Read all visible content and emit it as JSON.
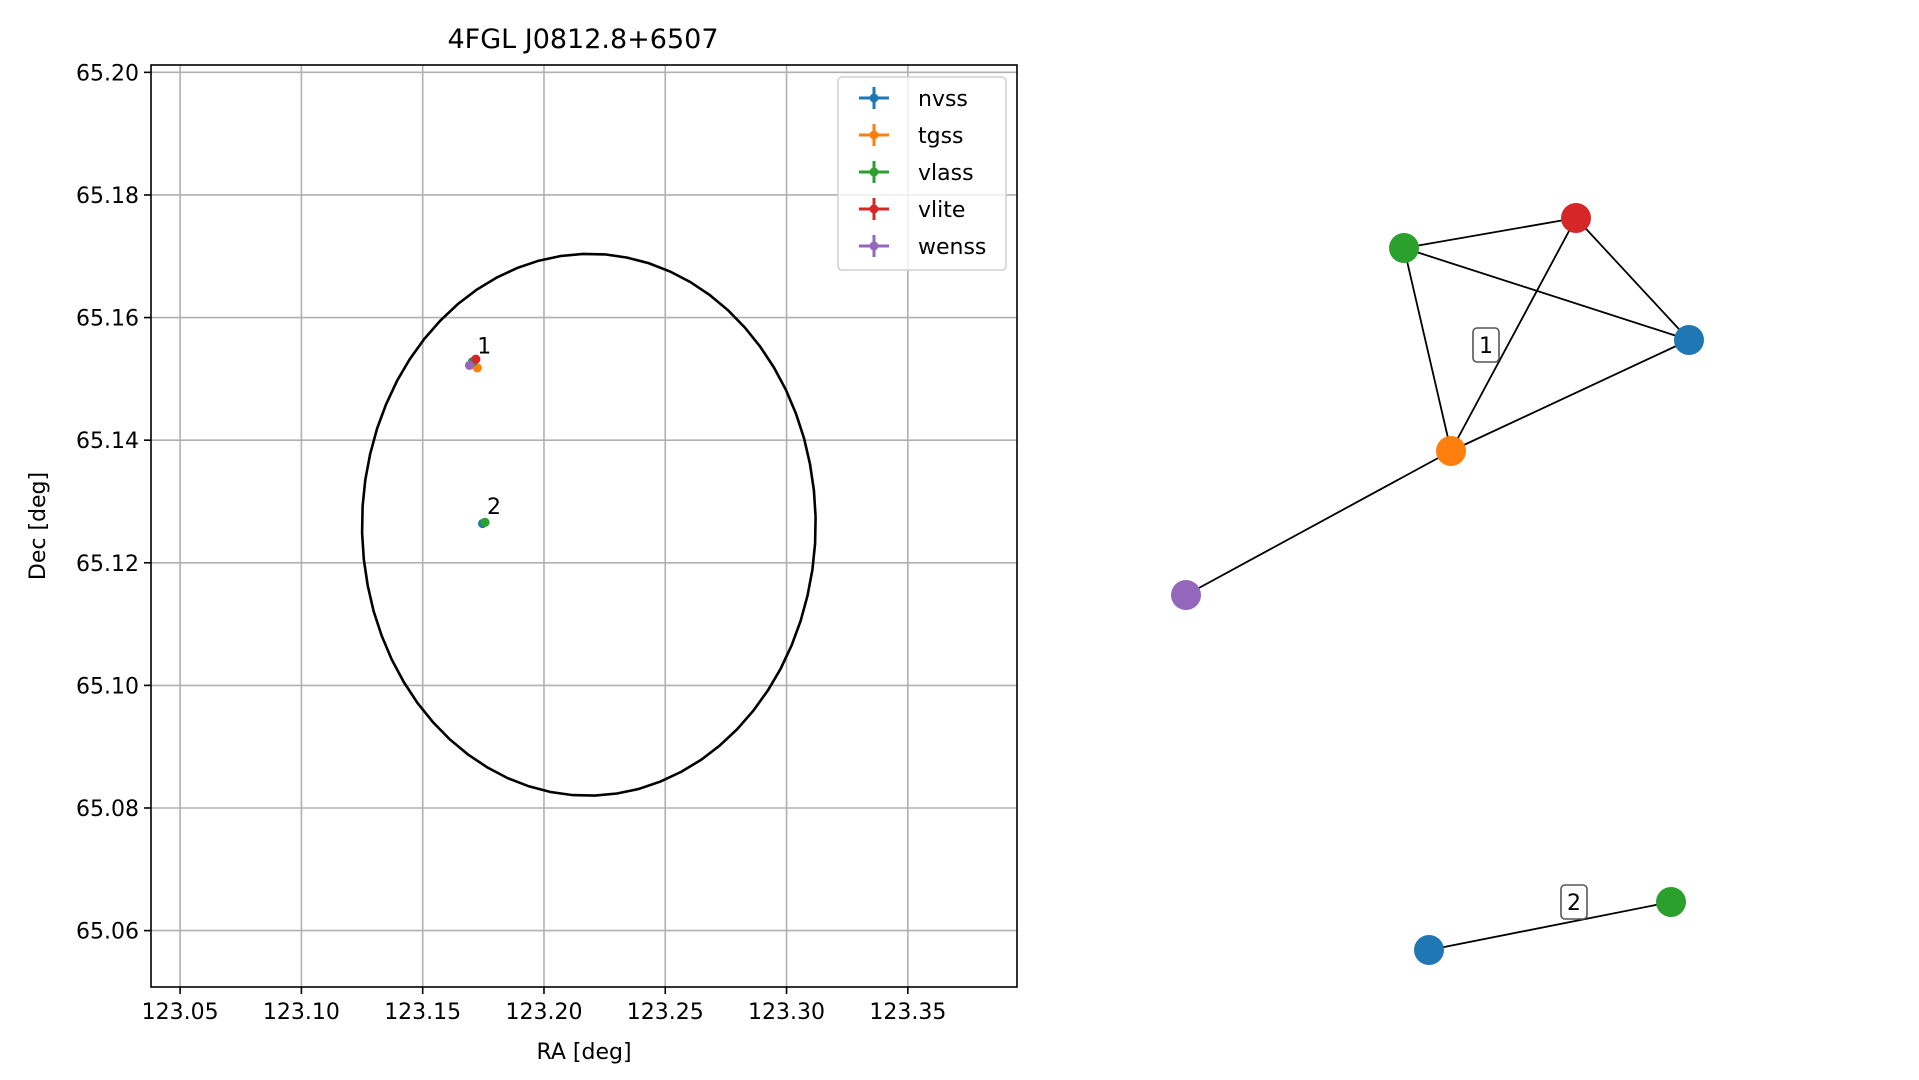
{
  "chart_data": [
    {
      "type": "scatter",
      "title": "4FGL J0812.8+6507",
      "xlabel": "RA [deg]",
      "ylabel": "Dec [deg]",
      "xlim": [
        123.038,
        123.395
      ],
      "ylim": [
        65.0508,
        65.2012
      ],
      "xticks": [
        123.05,
        123.1,
        123.15,
        123.2,
        123.25,
        123.3,
        123.35
      ],
      "xtick_labels": [
        "123.05",
        "123.10",
        "123.15",
        "123.20",
        "123.25",
        "123.30",
        "123.35"
      ],
      "yticks": [
        65.06,
        65.08,
        65.1,
        65.12,
        65.14,
        65.16,
        65.18,
        65.2
      ],
      "ytick_labels": [
        "65.06",
        "65.08",
        "65.10",
        "65.12",
        "65.14",
        "65.16",
        "65.18",
        "65.20"
      ],
      "grid": true,
      "legend_position": "top-right",
      "series": [
        {
          "name": "nvss",
          "color": "#1f77b4",
          "x": [
            123.1705,
            123.1747
          ],
          "y": [
            65.1528,
            65.1264
          ]
        },
        {
          "name": "tgss",
          "color": "#ff7f0e",
          "x": [
            123.1725
          ],
          "y": [
            65.1518
          ]
        },
        {
          "name": "vlass",
          "color": "#2ca02c",
          "x": [
            123.1709,
            123.1757
          ],
          "y": [
            65.1528,
            65.1266
          ]
        },
        {
          "name": "vlite",
          "color": "#d62728",
          "x": [
            123.1719
          ],
          "y": [
            65.1532
          ]
        },
        {
          "name": "wenss",
          "color": "#9467bd",
          "x": [
            123.1693
          ],
          "y": [
            65.1522
          ]
        }
      ],
      "annotations": [
        {
          "text": "1",
          "x": 123.1725,
          "y": 65.1545
        },
        {
          "text": "2",
          "x": 123.1765,
          "y": 65.1283
        }
      ],
      "ellipse": {
        "color": "#000000",
        "center": [
          123.2185,
          65.1262
        ],
        "ra_semi_axis": 0.0935,
        "dec_semi_axis": 0.0442,
        "tilt_deg": 1.6
      }
    },
    {
      "type": "network",
      "node_colors": {
        "nvss": "#1f77b4",
        "tgss": "#ff7f0e",
        "vlass": "#2ca02c",
        "vlite": "#d62728",
        "wenss": "#9467bd"
      },
      "groups": [
        {
          "label": "1",
          "nodes": [
            "vlass",
            "vlite",
            "nvss",
            "tgss",
            "wenss"
          ],
          "edges": [
            [
              "vlass",
              "vlite"
            ],
            [
              "vlass",
              "nvss"
            ],
            [
              "vlass",
              "tgss"
            ],
            [
              "vlite",
              "nvss"
            ],
            [
              "vlite",
              "tgss"
            ],
            [
              "nvss",
              "tgss"
            ],
            [
              "tgss",
              "wenss"
            ]
          ]
        },
        {
          "label": "2",
          "nodes": [
            "nvss",
            "vlass"
          ],
          "edges": [
            [
              "nvss",
              "vlass"
            ]
          ]
        }
      ]
    }
  ]
}
